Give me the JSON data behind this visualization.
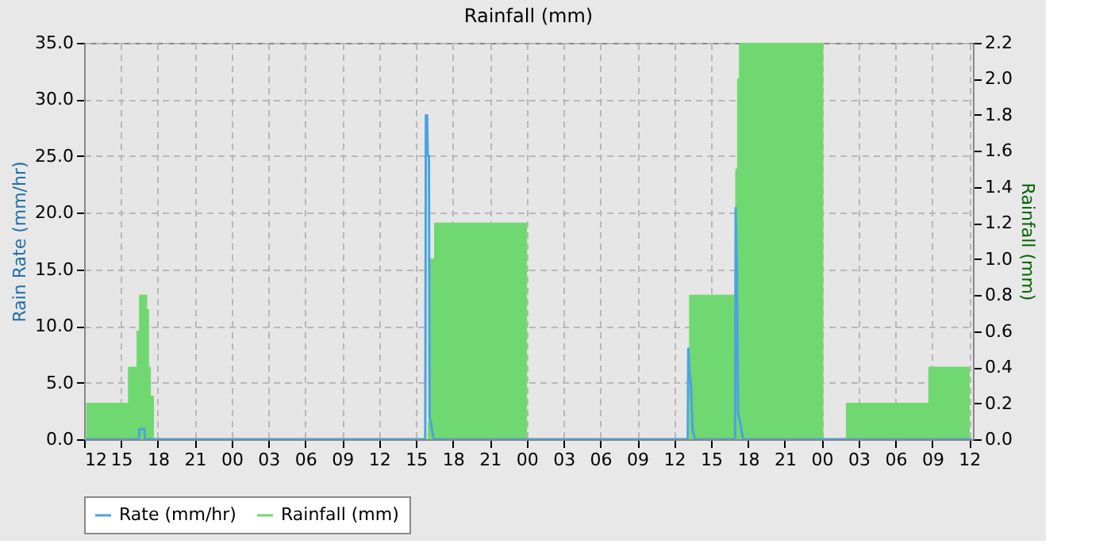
{
  "chart_data": {
    "type": "line",
    "title": "Rainfall (mm)",
    "ylabel": "Rain Rate (mm/hr)",
    "y2label": "Rainfall (mm)",
    "xlim": [
      12,
      84.3
    ],
    "xticks": [
      {
        "value": 12,
        "label": "12"
      },
      {
        "value": 15,
        "label": "15"
      },
      {
        "value": 18,
        "label": "18"
      },
      {
        "value": 21,
        "label": "21"
      },
      {
        "value": 24,
        "label": "00"
      },
      {
        "value": 27,
        "label": "03"
      },
      {
        "value": 30,
        "label": "06"
      },
      {
        "value": 33,
        "label": "09"
      },
      {
        "value": 36,
        "label": "12"
      },
      {
        "value": 39,
        "label": "15"
      },
      {
        "value": 42,
        "label": "18"
      },
      {
        "value": 45,
        "label": "21"
      },
      {
        "value": 48,
        "label": "00"
      },
      {
        "value": 51,
        "label": "03"
      },
      {
        "value": 54,
        "label": "06"
      },
      {
        "value": 57,
        "label": "09"
      },
      {
        "value": 60,
        "label": "12"
      },
      {
        "value": 63,
        "label": "15"
      },
      {
        "value": 66,
        "label": "18"
      },
      {
        "value": 69,
        "label": "21"
      },
      {
        "value": 72,
        "label": "00"
      },
      {
        "value": 75,
        "label": "03"
      },
      {
        "value": 78,
        "label": "06"
      },
      {
        "value": 81,
        "label": "09"
      },
      {
        "value": 84,
        "label": "12"
      }
    ],
    "ylim": [
      0,
      35
    ],
    "yticks": [
      {
        "value": 0,
        "label": "0.0"
      },
      {
        "value": 5,
        "label": "5.0"
      },
      {
        "value": 10,
        "label": "10.0"
      },
      {
        "value": 15,
        "label": "15.0"
      },
      {
        "value": 20,
        "label": "20.0"
      },
      {
        "value": 25,
        "label": "25.0"
      },
      {
        "value": 30,
        "label": "30.0"
      },
      {
        "value": 35,
        "label": "35.0"
      }
    ],
    "y2lim": [
      0,
      2.2
    ],
    "y2ticks": [
      {
        "value": 0,
        "label": "0.0"
      },
      {
        "value": 0.2,
        "label": "0.2"
      },
      {
        "value": 0.4,
        "label": "0.4"
      },
      {
        "value": 0.6,
        "label": "0.6"
      },
      {
        "value": 0.8,
        "label": "0.8"
      },
      {
        "value": 1.0,
        "label": "1.0"
      },
      {
        "value": 1.2,
        "label": "1.2"
      },
      {
        "value": 1.4,
        "label": "1.4"
      },
      {
        "value": 1.6,
        "label": "1.6"
      },
      {
        "value": 1.8,
        "label": "1.8"
      },
      {
        "value": 2.0,
        "label": "2.0"
      },
      {
        "value": 2.2,
        "label": "2.2"
      }
    ],
    "grid": true,
    "legend": "bottom",
    "series": [
      {
        "name": "Rainfall (mm)",
        "type": "area",
        "axis": "y2",
        "color": "#70d870",
        "x": [
          12.2,
          12.2,
          15.6,
          15.6,
          16.3,
          16.3,
          16.5,
          16.5,
          17.1,
          17.1,
          17.25,
          17.25,
          17.4,
          17.4,
          17.65,
          17.65,
          40.0,
          40.0,
          40.1,
          40.1,
          40.5,
          40.5,
          48.0,
          48.0,
          61.25,
          61.25,
          65.0,
          65.0,
          65.15,
          65.15,
          65.3,
          65.3,
          72.1,
          72.1,
          74.0,
          74.0,
          80.7,
          80.7,
          84.0,
          84.0
        ],
        "values": [
          0,
          0.2,
          0.2,
          0.4,
          0.4,
          0.6,
          0.6,
          0.8,
          0.8,
          0.72,
          0.72,
          0.4,
          0.4,
          0.24,
          0.24,
          0,
          0,
          0.1,
          0.1,
          1.0,
          1.0,
          1.2,
          1.2,
          0,
          0,
          0.8,
          0.8,
          1.5,
          1.5,
          2.0,
          2.0,
          2.2,
          2.2,
          0,
          0,
          0.2,
          0.2,
          0.4,
          0.4,
          0
        ]
      },
      {
        "name": "Rate (mm/hr)",
        "axis": "y",
        "color": "#4aa3df",
        "x": [
          12,
          16.45,
          16.5,
          16.9,
          16.95,
          39.75,
          39.8,
          39.9,
          39.95,
          40.05,
          40.1,
          40.2,
          40.3,
          40.45,
          61.1,
          61.15,
          61.25,
          61.35,
          61.5,
          61.7,
          64.95,
          65.0,
          65.1,
          65.2,
          65.35,
          65.6,
          84.2
        ],
        "values": [
          0,
          0,
          0.9,
          0.9,
          0,
          0,
          28.6,
          28.6,
          25.0,
          25.0,
          1.9,
          1.5,
          0.8,
          0,
          0,
          8.0,
          5.9,
          5.1,
          0.8,
          0,
          0,
          20.4,
          15.4,
          2.2,
          1.6,
          0,
          0
        ]
      }
    ]
  }
}
